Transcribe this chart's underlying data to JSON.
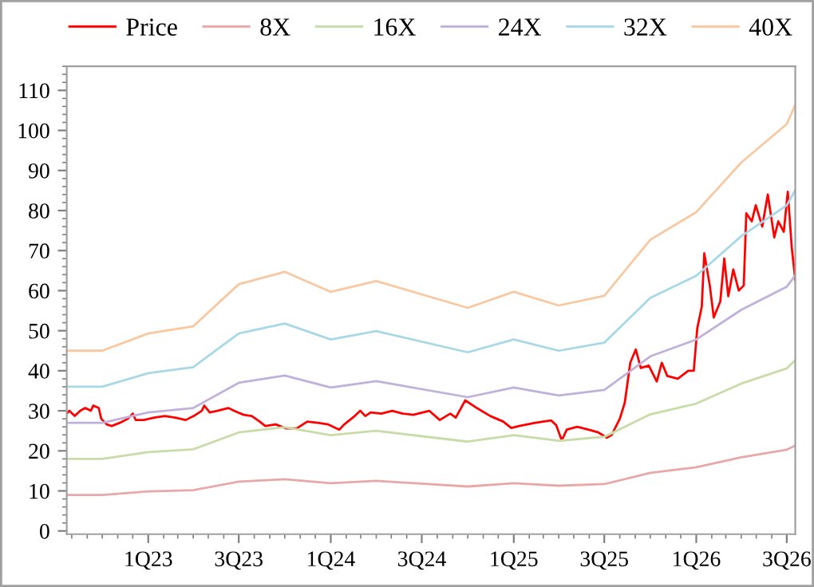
{
  "chart_data": {
    "type": "line",
    "xlim": [
      "2022-07-22",
      "2026-07-18"
    ],
    "ylim": [
      -0.8,
      116
    ],
    "xticks": [
      {
        "value": "2023-01-01",
        "label": "1Q23"
      },
      {
        "value": "2023-07-01",
        "label": "3Q23"
      },
      {
        "value": "2024-01-01",
        "label": "1Q24"
      },
      {
        "value": "2024-07-01",
        "label": "3Q24"
      },
      {
        "value": "2025-01-01",
        "label": "1Q25"
      },
      {
        "value": "2025-07-01",
        "label": "3Q25"
      },
      {
        "value": "2026-01-01",
        "label": "1Q26"
      },
      {
        "value": "2026-07-01",
        "label": "3Q26"
      }
    ],
    "yticks": [
      0,
      10,
      20,
      30,
      40,
      50,
      60,
      70,
      80,
      90,
      100,
      110
    ],
    "grid": false,
    "legend": "top",
    "line_style": "solid",
    "marker": "none",
    "series": [
      {
        "name": "Price",
        "color": "#ff0000",
        "x": [
          "2022-07-22",
          "2022-07-27",
          "2022-08-07",
          "2022-08-18",
          "2022-08-28",
          "2022-09-08",
          "2022-09-13",
          "2022-09-24",
          "2022-09-29",
          "2022-10-10",
          "2022-10-20",
          "2022-11-05",
          "2022-11-21",
          "2022-12-01",
          "2022-12-07",
          "2022-12-23",
          "2023-01-13",
          "2023-02-03",
          "2023-02-24",
          "2023-03-17",
          "2023-04-02",
          "2023-04-18",
          "2023-04-23",
          "2023-05-04",
          "2023-05-19",
          "2023-06-10",
          "2023-06-25",
          "2023-07-11",
          "2023-07-27",
          "2023-08-12",
          "2023-08-23",
          "2023-09-13",
          "2023-10-04",
          "2023-10-25",
          "2023-11-15",
          "2023-12-06",
          "2023-12-27",
          "2024-01-18",
          "2024-01-28",
          "2024-02-18",
          "2024-02-29",
          "2024-03-10",
          "2024-03-21",
          "2024-04-11",
          "2024-05-03",
          "2024-05-24",
          "2024-06-14",
          "2024-07-16",
          "2024-08-06",
          "2024-08-27",
          "2024-09-07",
          "2024-09-26",
          "2024-10-19",
          "2024-11-15",
          "2024-12-11",
          "2024-12-27",
          "2025-01-12",
          "2025-02-13",
          "2025-03-17",
          "2025-03-27",
          "2025-04-07",
          "2025-04-17",
          "2025-05-08",
          "2025-05-30",
          "2025-06-19",
          "2025-07-06",
          "2025-07-16",
          "2025-08-01",
          "2025-08-11",
          "2025-08-22",
          "2025-09-02",
          "2025-09-12",
          "2025-09-28",
          "2025-10-14",
          "2025-10-24",
          "2025-11-04",
          "2025-11-25",
          "2025-12-16",
          "2025-12-27",
          "2026-01-03",
          "2026-01-12",
          "2026-01-17",
          "2026-01-28",
          "2026-02-05",
          "2026-02-18",
          "2026-02-26",
          "2026-03-06",
          "2026-03-16",
          "2026-03-27",
          "2026-04-06",
          "2026-04-11",
          "2026-04-22",
          "2026-04-30",
          "2026-05-13",
          "2026-05-24",
          "2026-06-06",
          "2026-06-14",
          "2026-06-25",
          "2026-07-03",
          "2026-07-11",
          "2026-07-18"
        ],
        "values": [
          29.3,
          30.0,
          28.7,
          30.0,
          30.7,
          30.0,
          31.3,
          30.7,
          28.0,
          26.6,
          26.2,
          27.0,
          28.0,
          29.3,
          27.7,
          27.7,
          28.3,
          28.7,
          28.3,
          27.7,
          28.7,
          30.0,
          31.3,
          29.6,
          30.0,
          30.7,
          29.8,
          29.0,
          28.7,
          27.3,
          26.2,
          26.6,
          25.6,
          25.6,
          27.3,
          27.0,
          26.6,
          25.3,
          26.6,
          28.7,
          30.0,
          28.7,
          29.6,
          29.3,
          30.0,
          29.3,
          29.0,
          30.0,
          27.7,
          29.3,
          28.3,
          32.6,
          30.7,
          28.7,
          27.3,
          25.7,
          26.2,
          27.0,
          27.6,
          26.4,
          22.6,
          25.3,
          26.0,
          25.3,
          24.6,
          23.3,
          24.0,
          28.0,
          32.0,
          42.0,
          45.3,
          40.7,
          41.3,
          37.3,
          42.0,
          38.7,
          38.0,
          40.0,
          40.0,
          50.6,
          56.0,
          69.3,
          61.3,
          53.3,
          57.3,
          68.0,
          58.6,
          65.3,
          60.0,
          61.3,
          79.3,
          77.3,
          81.3,
          76.0,
          84.0,
          73.3,
          77.3,
          74.7,
          84.7,
          70.7,
          62.7
        ]
      },
      {
        "name": "8X",
        "color": "#e8a8a8",
        "x": [
          "2022-07-22",
          "2022-10-01",
          "2023-01-01",
          "2023-04-01",
          "2023-07-01",
          "2023-10-01",
          "2024-01-01",
          "2024-04-01",
          "2024-10-01",
          "2025-01-01",
          "2025-04-01",
          "2025-07-01",
          "2025-10-01",
          "2026-01-01",
          "2026-04-01",
          "2026-07-01",
          "2026-07-18"
        ],
        "values": [
          9,
          9,
          9.9,
          10.2,
          12.3,
          12.9,
          11.9,
          12.5,
          11.1,
          11.9,
          11.3,
          11.7,
          14.5,
          15.9,
          18.4,
          20.3,
          21.3
        ]
      },
      {
        "name": "16X",
        "color": "#c8dca8",
        "x": [
          "2022-07-22",
          "2022-10-01",
          "2023-01-01",
          "2023-04-01",
          "2023-07-01",
          "2023-10-01",
          "2024-01-01",
          "2024-04-01",
          "2024-10-01",
          "2025-01-01",
          "2025-04-01",
          "2025-07-01",
          "2025-10-01",
          "2026-01-01",
          "2026-04-01",
          "2026-07-01",
          "2026-07-18"
        ],
        "values": [
          18,
          18,
          19.7,
          20.4,
          24.6,
          25.9,
          23.9,
          25,
          22.3,
          23.9,
          22.5,
          23.5,
          29.1,
          31.8,
          36.8,
          40.6,
          42.6
        ]
      },
      {
        "name": "24X",
        "color": "#c0b0dc",
        "x": [
          "2022-07-22",
          "2022-10-01",
          "2023-01-01",
          "2023-04-01",
          "2023-07-01",
          "2023-10-01",
          "2024-01-01",
          "2024-04-01",
          "2024-10-01",
          "2025-01-01",
          "2025-04-01",
          "2025-07-01",
          "2025-10-01",
          "2026-01-01",
          "2026-04-01",
          "2026-07-01",
          "2026-07-18"
        ],
        "values": [
          27,
          27,
          29.6,
          30.7,
          37,
          38.8,
          35.8,
          37.4,
          33.4,
          35.8,
          33.8,
          35.2,
          43.6,
          47.8,
          55.2,
          61,
          63.8
        ]
      },
      {
        "name": "32X",
        "color": "#a8d8e8",
        "x": [
          "2022-07-22",
          "2022-10-01",
          "2023-01-01",
          "2023-04-01",
          "2023-07-01",
          "2023-10-01",
          "2024-01-01",
          "2024-04-01",
          "2024-10-01",
          "2025-01-01",
          "2025-04-01",
          "2025-07-01",
          "2025-10-01",
          "2026-01-01",
          "2026-04-01",
          "2026-07-01",
          "2026-07-18"
        ],
        "values": [
          36,
          36,
          39.4,
          40.9,
          49.3,
          51.8,
          47.8,
          49.9,
          44.6,
          47.8,
          45,
          47,
          58.2,
          63.7,
          73.6,
          81.3,
          85.1
        ]
      },
      {
        "name": "40X",
        "color": "#f8c8a0",
        "x": [
          "2022-07-22",
          "2022-10-01",
          "2023-01-01",
          "2023-04-01",
          "2023-07-01",
          "2023-10-01",
          "2024-01-01",
          "2024-04-01",
          "2024-10-01",
          "2025-01-01",
          "2025-04-01",
          "2025-07-01",
          "2025-10-01",
          "2026-01-01",
          "2026-04-01",
          "2026-07-01",
          "2026-07-18"
        ],
        "values": [
          45,
          45,
          49.3,
          51.1,
          61.6,
          64.7,
          59.7,
          62.4,
          55.7,
          59.7,
          56.3,
          58.7,
          72.7,
          79.6,
          92,
          101.6,
          106.4
        ]
      }
    ]
  }
}
